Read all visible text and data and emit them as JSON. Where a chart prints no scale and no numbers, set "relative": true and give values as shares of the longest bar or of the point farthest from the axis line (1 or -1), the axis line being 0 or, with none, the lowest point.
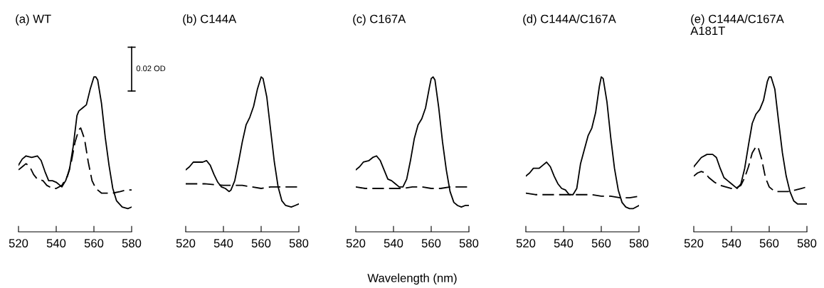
{
  "chart_data": [
    {
      "type": "line",
      "title": "(a) WT",
      "relative": true,
      "xlim": [
        520,
        580
      ],
      "xticks": [
        520,
        540,
        560,
        580
      ],
      "annotations": [
        "0.02 OD"
      ],
      "series": [
        {
          "color": "#000000",
          "line_style": "solid",
          "x": [
            520,
            522,
            524,
            527,
            530,
            532,
            534,
            536,
            538,
            540,
            542,
            543,
            545,
            547,
            549,
            551,
            552,
            554,
            556,
            558,
            560,
            561,
            562,
            564,
            566,
            568,
            570,
            572,
            575,
            578,
            580
          ],
          "values": [
            0.43,
            0.47,
            0.49,
            0.48,
            0.49,
            0.46,
            0.39,
            0.33,
            0.33,
            0.32,
            0.3,
            0.29,
            0.33,
            0.4,
            0.55,
            0.75,
            0.78,
            0.8,
            0.82,
            0.92,
            1.0,
            1.0,
            0.98,
            0.83,
            0.61,
            0.43,
            0.28,
            0.2,
            0.16,
            0.15,
            0.16
          ]
        },
        {
          "color": "#000000",
          "line_style": "dashed",
          "x": [
            520,
            522,
            524,
            526,
            528,
            530,
            533,
            535,
            538,
            540,
            543,
            546,
            548,
            550,
            552,
            553,
            555,
            557,
            559,
            561,
            564,
            567,
            570,
            574,
            577,
            580
          ],
          "values": [
            0.4,
            0.42,
            0.44,
            0.42,
            0.37,
            0.34,
            0.33,
            0.3,
            0.28,
            0.28,
            0.3,
            0.36,
            0.45,
            0.58,
            0.66,
            0.67,
            0.6,
            0.45,
            0.33,
            0.28,
            0.25,
            0.25,
            0.25,
            0.26,
            0.27,
            0.27
          ]
        }
      ]
    },
    {
      "type": "line",
      "title": "(b) C144A",
      "relative": true,
      "xlim": [
        520,
        580
      ],
      "xticks": [
        520,
        540,
        560,
        580
      ],
      "series": [
        {
          "color": "#000000",
          "line_style": "solid",
          "x": [
            520,
            522,
            524,
            527,
            529,
            531,
            533,
            535,
            537,
            539,
            541,
            543,
            544,
            546,
            548,
            550,
            552,
            554,
            556,
            558,
            560,
            561,
            563,
            565,
            567,
            569,
            571,
            573,
            576,
            578,
            580
          ],
          "values": [
            0.4,
            0.42,
            0.45,
            0.45,
            0.45,
            0.46,
            0.43,
            0.37,
            0.32,
            0.29,
            0.28,
            0.26,
            0.27,
            0.33,
            0.45,
            0.58,
            0.69,
            0.74,
            0.81,
            0.92,
            1.0,
            0.99,
            0.87,
            0.66,
            0.45,
            0.29,
            0.2,
            0.17,
            0.16,
            0.17,
            0.18
          ]
        },
        {
          "color": "#000000",
          "line_style": "dashed",
          "x": [
            520,
            530,
            540,
            545,
            550,
            555,
            560,
            565,
            570,
            575,
            580
          ],
          "values": [
            0.31,
            0.31,
            0.3,
            0.3,
            0.3,
            0.29,
            0.28,
            0.29,
            0.29,
            0.29,
            0.29
          ]
        }
      ]
    },
    {
      "type": "line",
      "title": "(c) C167A",
      "relative": true,
      "xlabel": "Wavelength (nm)",
      "xlim": [
        520,
        580
      ],
      "xticks": [
        520,
        540,
        560,
        580
      ],
      "series": [
        {
          "color": "#000000",
          "line_style": "solid",
          "x": [
            520,
            522,
            524,
            527,
            529,
            531,
            533,
            535,
            537,
            539,
            541,
            543,
            545,
            547,
            549,
            551,
            553,
            555,
            557,
            559,
            560,
            561,
            562,
            564,
            566,
            568,
            570,
            572,
            574,
            576,
            578,
            580
          ],
          "values": [
            0.4,
            0.42,
            0.45,
            0.46,
            0.48,
            0.49,
            0.46,
            0.4,
            0.34,
            0.33,
            0.31,
            0.29,
            0.29,
            0.34,
            0.46,
            0.6,
            0.69,
            0.73,
            0.8,
            0.93,
            0.99,
            1.0,
            0.98,
            0.8,
            0.58,
            0.4,
            0.26,
            0.19,
            0.17,
            0.16,
            0.17,
            0.17
          ]
        },
        {
          "color": "#000000",
          "line_style": "dashed",
          "x": [
            520,
            525,
            530,
            535,
            540,
            545,
            550,
            555,
            560,
            565,
            570,
            575,
            580
          ],
          "values": [
            0.29,
            0.28,
            0.28,
            0.28,
            0.28,
            0.28,
            0.29,
            0.29,
            0.28,
            0.28,
            0.29,
            0.29,
            0.29
          ]
        }
      ]
    },
    {
      "type": "line",
      "title": "(d) C144A/C167A",
      "relative": true,
      "xlim": [
        520,
        580
      ],
      "xticks": [
        520,
        540,
        560,
        580
      ],
      "series": [
        {
          "color": "#000000",
          "line_style": "solid",
          "x": [
            520,
            522,
            524,
            527,
            529,
            531,
            533,
            535,
            537,
            539,
            541,
            543,
            545,
            547,
            549,
            551,
            553,
            555,
            557,
            559,
            560,
            561,
            563,
            565,
            567,
            569,
            571,
            573,
            575,
            577,
            580
          ],
          "values": [
            0.36,
            0.38,
            0.41,
            0.41,
            0.43,
            0.45,
            0.42,
            0.36,
            0.31,
            0.28,
            0.27,
            0.24,
            0.24,
            0.28,
            0.44,
            0.53,
            0.62,
            0.67,
            0.77,
            0.94,
            1.0,
            0.99,
            0.84,
            0.61,
            0.41,
            0.27,
            0.19,
            0.16,
            0.15,
            0.15,
            0.17
          ]
        },
        {
          "color": "#000000",
          "line_style": "dashed",
          "x": [
            520,
            525,
            530,
            535,
            540,
            545,
            550,
            555,
            560,
            565,
            570,
            575,
            580
          ],
          "values": [
            0.25,
            0.24,
            0.24,
            0.24,
            0.24,
            0.24,
            0.24,
            0.24,
            0.23,
            0.23,
            0.22,
            0.22,
            0.23
          ]
        }
      ]
    },
    {
      "type": "line",
      "title": "(e) C144A/C167A\nA181T",
      "relative": true,
      "xlim": [
        520,
        580
      ],
      "xticks": [
        520,
        540,
        560,
        580
      ],
      "series": [
        {
          "color": "#000000",
          "line_style": "solid",
          "x": [
            520,
            522,
            524,
            527,
            530,
            532,
            534,
            536,
            538,
            540,
            542,
            543,
            545,
            547,
            549,
            551,
            553,
            555,
            557,
            559,
            560,
            561,
            563,
            565,
            567,
            569,
            571,
            573,
            575,
            578,
            580
          ],
          "values": [
            0.42,
            0.45,
            0.48,
            0.5,
            0.5,
            0.48,
            0.41,
            0.35,
            0.33,
            0.31,
            0.29,
            0.28,
            0.31,
            0.41,
            0.56,
            0.7,
            0.76,
            0.79,
            0.85,
            0.97,
            1.0,
            1.0,
            0.92,
            0.71,
            0.51,
            0.36,
            0.26,
            0.2,
            0.18,
            0.18,
            0.18
          ]
        },
        {
          "color": "#000000",
          "line_style": "dashed",
          "x": [
            520,
            522,
            524,
            526,
            528,
            531,
            534,
            537,
            540,
            542,
            545,
            547,
            549,
            551,
            553,
            554,
            556,
            558,
            560,
            563,
            566,
            570,
            574,
            577,
            580
          ],
          "values": [
            0.36,
            0.38,
            0.39,
            0.38,
            0.35,
            0.32,
            0.3,
            0.29,
            0.28,
            0.28,
            0.3,
            0.35,
            0.42,
            0.51,
            0.55,
            0.55,
            0.47,
            0.35,
            0.29,
            0.26,
            0.26,
            0.26,
            0.27,
            0.28,
            0.29
          ]
        }
      ]
    }
  ]
}
